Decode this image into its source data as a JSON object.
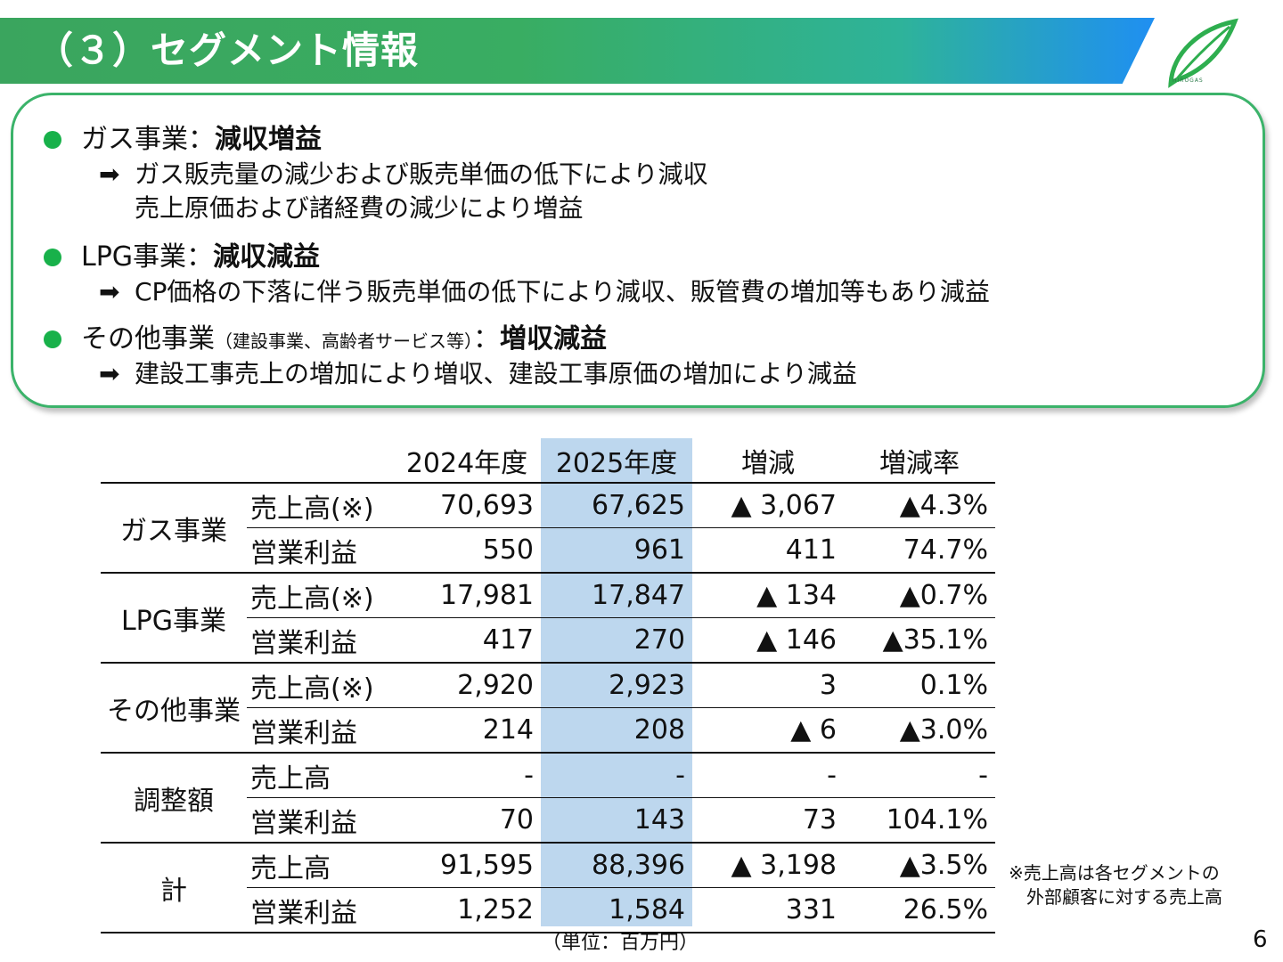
{
  "header": {
    "title": "（３）セグメント情報",
    "logo_text": "HIROGAS",
    "colors": {
      "green": "#3aa55e",
      "blue": "#1f8ff2"
    }
  },
  "summary": [
    {
      "name": "ガス事業",
      "note": "",
      "separator": "：",
      "result": "減収増益",
      "details": [
        "ガス販売量の減少および販売単価の低下により減収",
        "売上原価および諸経費の減少により増益"
      ]
    },
    {
      "name": "LPG事業",
      "note": "",
      "separator": "：",
      "result": "減収減益",
      "details": [
        "CP価格の下落に伴う販売単価の低下により減収、販管費の増加等もあり減益"
      ]
    },
    {
      "name": "その他事業",
      "note": "（建設事業、高齢者サービス等）",
      "separator": "：",
      "result": "増収減益",
      "details": [
        "建設工事売上の増加により増収、建設工事原価の増加により減益"
      ]
    }
  ],
  "table": {
    "headers": [
      "",
      "",
      "2024年度",
      "2025年度",
      "増減",
      "増減率"
    ],
    "rows": [
      {
        "segment": "ガス事業",
        "item": "売上高(※)",
        "y2024": "70,693",
        "y2025": "67,625",
        "change": "▲ 3,067",
        "rate": "▲4.3%"
      },
      {
        "segment": "",
        "item": "営業利益",
        "y2024": "550",
        "y2025": "961",
        "change": "411",
        "rate": "74.7%"
      },
      {
        "segment": "LPG事業",
        "item": "売上高(※)",
        "y2024": "17,981",
        "y2025": "17,847",
        "change": "▲ 134",
        "rate": "▲0.7%"
      },
      {
        "segment": "",
        "item": "営業利益",
        "y2024": "417",
        "y2025": "270",
        "change": "▲ 146",
        "rate": "▲35.1%"
      },
      {
        "segment": "その他事業",
        "item": "売上高(※)",
        "y2024": "2,920",
        "y2025": "2,923",
        "change": "3",
        "rate": "0.1%"
      },
      {
        "segment": "",
        "item": "営業利益",
        "y2024": "214",
        "y2025": "208",
        "change": "▲ 6",
        "rate": "▲3.0%"
      },
      {
        "segment": "調整額",
        "item": "売上高",
        "y2024": "-",
        "y2025": "-",
        "change": "-",
        "rate": "-"
      },
      {
        "segment": "",
        "item": "営業利益",
        "y2024": "70",
        "y2025": "143",
        "change": "73",
        "rate": "104.1%"
      },
      {
        "segment": "計",
        "item": "売上高",
        "y2024": "91,595",
        "y2025": "88,396",
        "change": "▲ 3,198",
        "rate": "▲3.5%"
      },
      {
        "segment": "",
        "item": "営業利益",
        "y2024": "1,252",
        "y2025": "1,584",
        "change": "331",
        "rate": "26.5%"
      }
    ],
    "highlight_color": "#bdd7ee",
    "unit": "（単位：百万円）"
  },
  "footnote": [
    "※売上高は各セグメントの",
    "　外部顧客に対する売上高"
  ],
  "page_number": "6"
}
